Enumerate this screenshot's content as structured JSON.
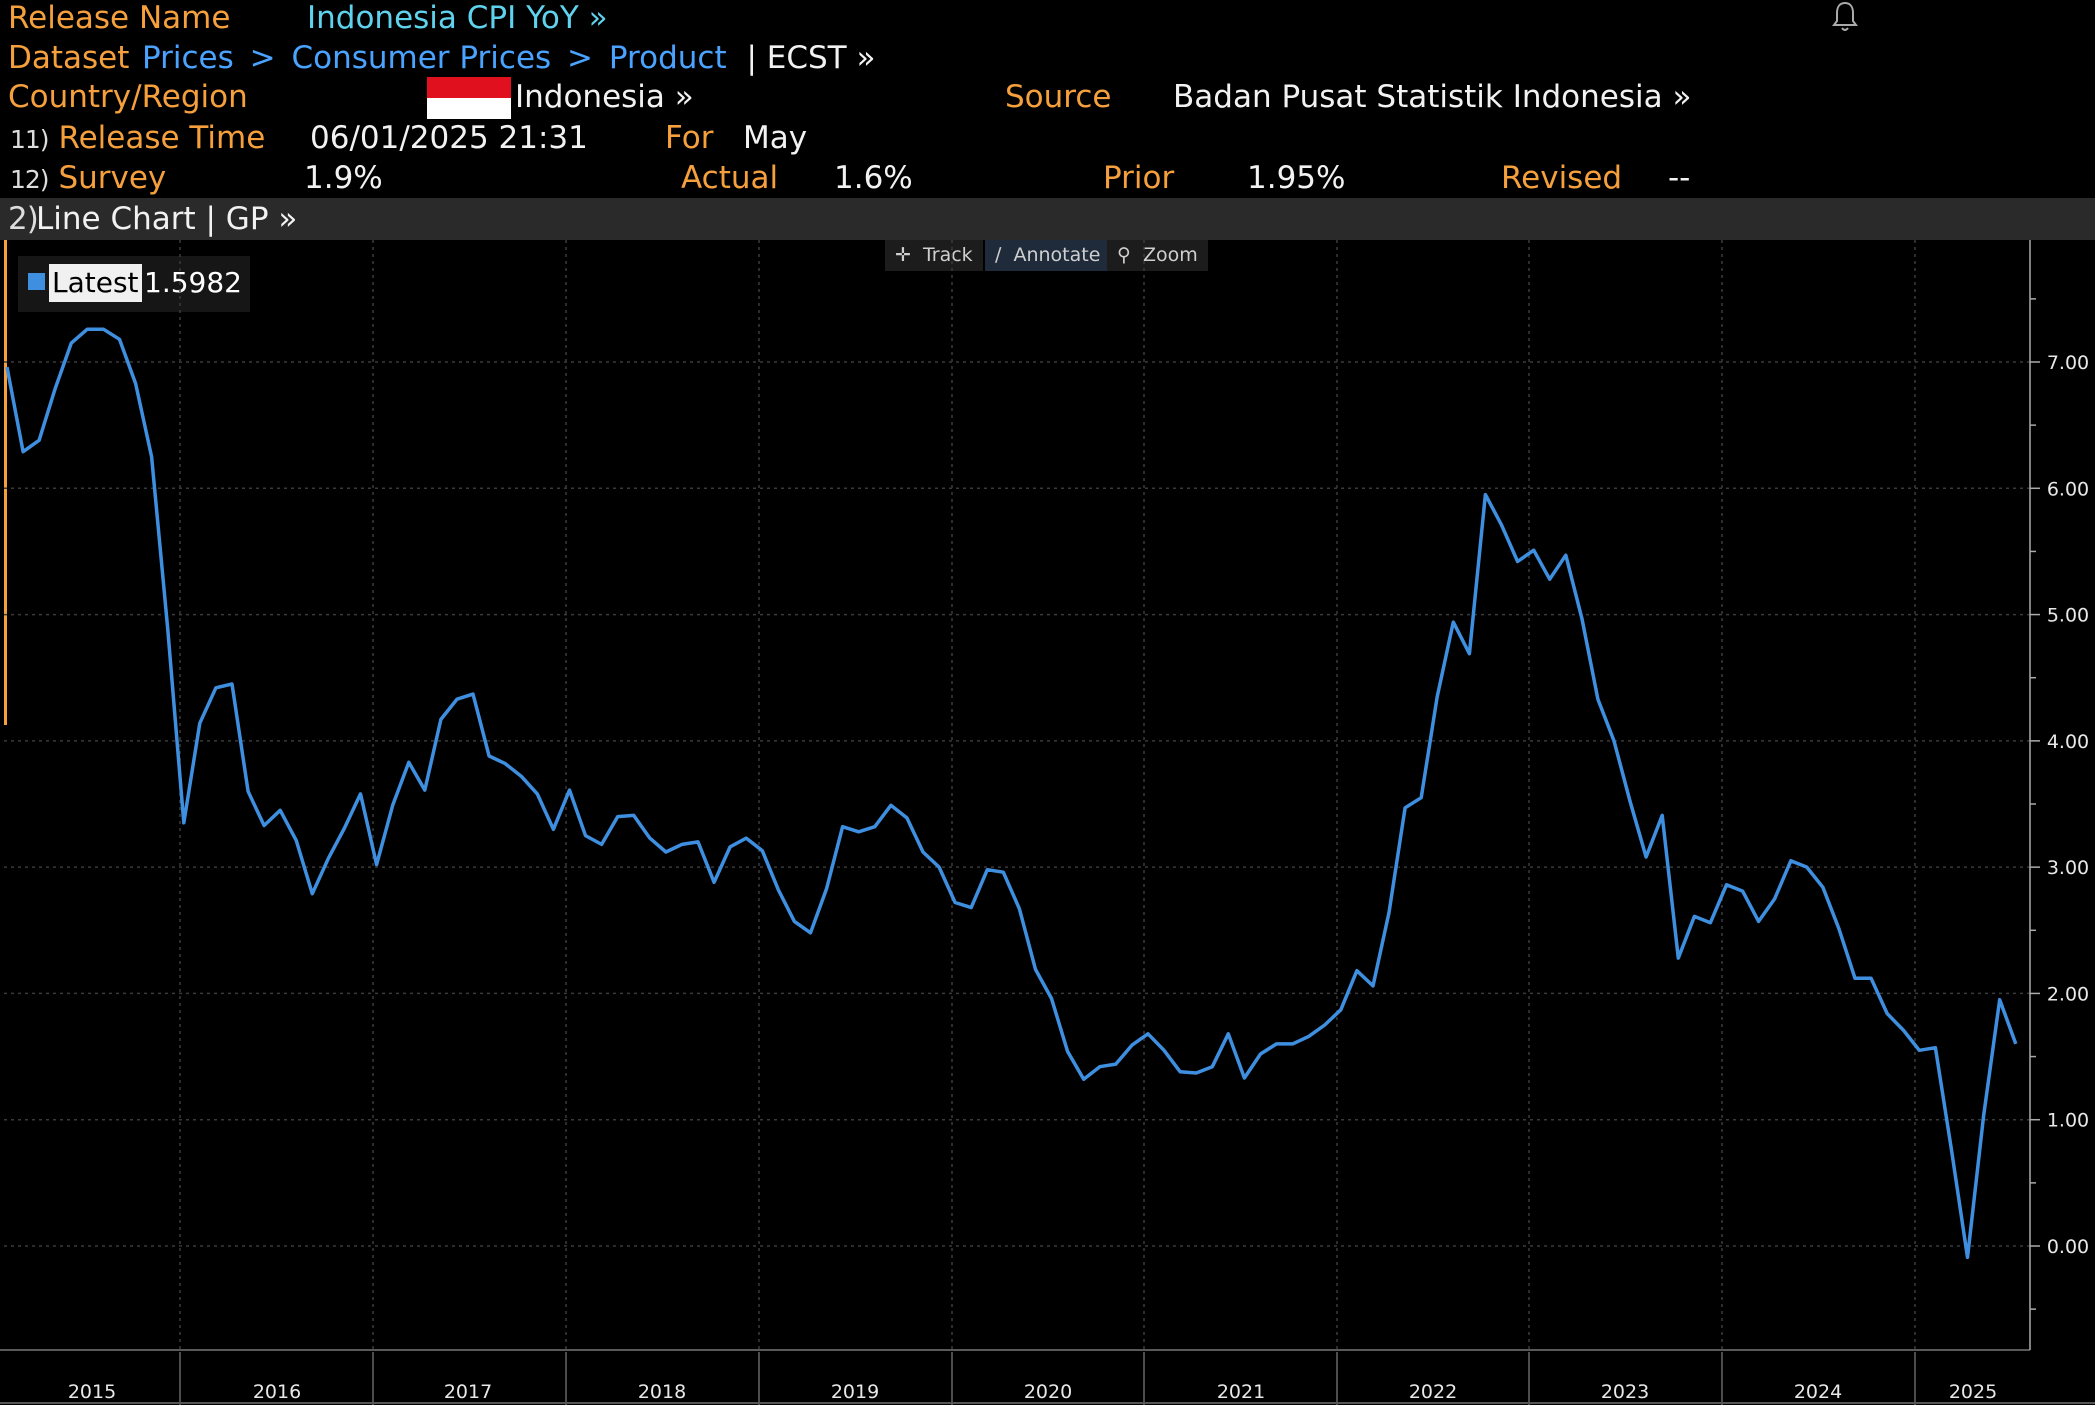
{
  "header": {
    "release_name_label": "Release Name",
    "release_name_value": "Indonesia CPI YoY »",
    "dataset_label": "Dataset",
    "dataset_path": [
      "Prices",
      "Consumer Prices",
      "Product"
    ],
    "dataset_sep": ">",
    "dataset_suffix": "| ECST »",
    "country_label": "Country/Region",
    "country_value": "Indonesia »",
    "source_label": "Source",
    "source_value": "Badan Pusat Statistik Indonesia »",
    "release_time_num": "11)",
    "release_time_label": "Release Time",
    "release_time_value": "06/01/2025 21:31",
    "for_label": "For",
    "for_value": "May",
    "survey_num": "12)",
    "survey_label": "Survey",
    "survey_value": "1.9%",
    "actual_label": "Actual",
    "actual_value": "1.6%",
    "prior_label": "Prior",
    "prior_value": "1.95%",
    "revised_label": "Revised",
    "revised_value": "--",
    "flag_colors": {
      "top": "#e0101e",
      "bottom": "#ffffff"
    }
  },
  "chart_bar": {
    "num": "2)",
    "title": "Line Chart | GP »"
  },
  "toolbar": {
    "track": "Track",
    "annotate": "Annotate",
    "zoom": "Zoom"
  },
  "legend": {
    "label": "Latest",
    "value": "1.5982",
    "color": "#3f8fe0"
  },
  "chart_data": {
    "type": "line",
    "series": [
      {
        "name": "Latest",
        "color": "#3f8fe0",
        "values": [
          6.96,
          6.29,
          6.38,
          6.79,
          7.15,
          7.26,
          7.26,
          7.18,
          6.83,
          6.25,
          4.89,
          3.35,
          4.14,
          4.42,
          4.45,
          3.6,
          3.33,
          3.45,
          3.21,
          2.79,
          3.07,
          3.31,
          3.58,
          3.02,
          3.49,
          3.83,
          3.61,
          4.17,
          4.33,
          4.37,
          3.88,
          3.82,
          3.72,
          3.58,
          3.3,
          3.61,
          3.25,
          3.18,
          3.4,
          3.41,
          3.23,
          3.12,
          3.18,
          3.2,
          2.88,
          3.16,
          3.23,
          3.13,
          2.82,
          2.57,
          2.48,
          2.83,
          3.32,
          3.28,
          3.32,
          3.49,
          3.39,
          3.12,
          3.0,
          2.72,
          2.68,
          2.98,
          2.96,
          2.67,
          2.19,
          1.96,
          1.54,
          1.32,
          1.42,
          1.44,
          1.59,
          1.68,
          1.55,
          1.38,
          1.37,
          1.42,
          1.68,
          1.33,
          1.52,
          1.6,
          1.6,
          1.66,
          1.75,
          1.87,
          2.18,
          2.06,
          2.64,
          3.47,
          3.55,
          4.35,
          4.94,
          4.69,
          5.95,
          5.71,
          5.42,
          5.51,
          5.28,
          5.47,
          4.97,
          4.33,
          4.0,
          3.52,
          3.08,
          3.41,
          2.28,
          2.61,
          2.56,
          2.86,
          2.81,
          2.57,
          2.75,
          3.05,
          3.0,
          2.84,
          2.51,
          2.12,
          2.12,
          1.84,
          1.71,
          1.55,
          1.57,
          0.76,
          -0.09,
          1.03,
          1.95,
          1.6
        ]
      }
    ],
    "x_axis_labels": [
      "2015",
      "2016",
      "2017",
      "2018",
      "2019",
      "2020",
      "2021",
      "2022",
      "2023",
      "2024",
      "2025"
    ],
    "y_ticks": [
      "0.00",
      "1.00",
      "2.00",
      "3.00",
      "4.00",
      "5.00",
      "6.00",
      "7.00"
    ],
    "ylim": [
      -0.9,
      7.9
    ],
    "grid": true,
    "legend_position": "top-left"
  }
}
